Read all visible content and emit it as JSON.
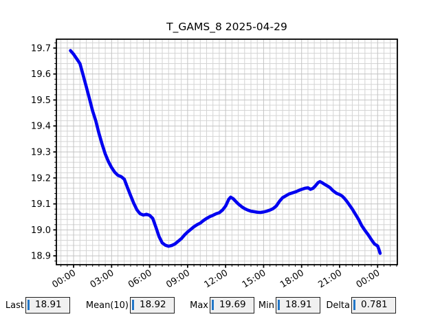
{
  "chart_data": {
    "type": "line",
    "title": "T_GAMS_8 2025-04-29",
    "xlabel": "",
    "ylabel": "",
    "x_unit": "hours_from_midnight",
    "xlim": [
      -1.36,
      25.56
    ],
    "ylim": [
      18.866,
      19.734
    ],
    "grid": "both",
    "legend": "none",
    "line_color": "#0000f0",
    "line_width": 4.6,
    "grid_major_color": "#c3c3c3",
    "grid_minor_color": "#d4d4d4",
    "axis_color": "#000000",
    "x_major_ticks": [
      {
        "pos": 0,
        "label": "00:00"
      },
      {
        "pos": 3,
        "label": "03:00"
      },
      {
        "pos": 6,
        "label": "06:00"
      },
      {
        "pos": 9,
        "label": "09:00"
      },
      {
        "pos": 12,
        "label": "12:00"
      },
      {
        "pos": 15,
        "label": "15:00"
      },
      {
        "pos": 18,
        "label": "18:00"
      },
      {
        "pos": 21,
        "label": "21:00"
      },
      {
        "pos": 24,
        "label": "00:00"
      }
    ],
    "x_minor_step": 0.5,
    "y_major_ticks": [
      {
        "pos": 18.9,
        "label": "18.9"
      },
      {
        "pos": 19.0,
        "label": "19.0"
      },
      {
        "pos": 19.1,
        "label": "19.1"
      },
      {
        "pos": 19.2,
        "label": "19.2"
      },
      {
        "pos": 19.3,
        "label": "19.3"
      },
      {
        "pos": 19.4,
        "label": "19.4"
      },
      {
        "pos": 19.5,
        "label": "19.5"
      },
      {
        "pos": 19.6,
        "label": "19.6"
      },
      {
        "pos": 19.7,
        "label": "19.7"
      }
    ],
    "y_minor_step": 0.02,
    "series": [
      {
        "name": "T_GAMS_8",
        "points": [
          [
            -0.25,
            19.69
          ],
          [
            0,
            19.676
          ],
          [
            0.25,
            19.658
          ],
          [
            0.5,
            19.64
          ],
          [
            0.75,
            19.596
          ],
          [
            1,
            19.551
          ],
          [
            1.25,
            19.505
          ],
          [
            1.5,
            19.458
          ],
          [
            1.75,
            19.42
          ],
          [
            2,
            19.372
          ],
          [
            2.25,
            19.33
          ],
          [
            2.5,
            19.292
          ],
          [
            2.75,
            19.263
          ],
          [
            3,
            19.24
          ],
          [
            3.25,
            19.222
          ],
          [
            3.5,
            19.21
          ],
          [
            3.75,
            19.205
          ],
          [
            4,
            19.195
          ],
          [
            4.25,
            19.163
          ],
          [
            4.5,
            19.132
          ],
          [
            4.75,
            19.102
          ],
          [
            5,
            19.077
          ],
          [
            5.25,
            19.062
          ],
          [
            5.5,
            19.057
          ],
          [
            5.75,
            19.06
          ],
          [
            6,
            19.056
          ],
          [
            6.25,
            19.044
          ],
          [
            6.5,
            19.01
          ],
          [
            6.75,
            18.974
          ],
          [
            7,
            18.95
          ],
          [
            7.25,
            18.941
          ],
          [
            7.5,
            18.937
          ],
          [
            7.75,
            18.94
          ],
          [
            8,
            18.946
          ],
          [
            8.25,
            18.956
          ],
          [
            8.5,
            18.966
          ],
          [
            8.75,
            18.98
          ],
          [
            9,
            18.992
          ],
          [
            9.25,
            19.002
          ],
          [
            9.5,
            19.012
          ],
          [
            9.75,
            19.02
          ],
          [
            10,
            19.026
          ],
          [
            10.25,
            19.036
          ],
          [
            10.5,
            19.044
          ],
          [
            10.75,
            19.051
          ],
          [
            11,
            19.056
          ],
          [
            11.25,
            19.062
          ],
          [
            11.5,
            19.066
          ],
          [
            11.75,
            19.076
          ],
          [
            12,
            19.092
          ],
          [
            12.25,
            19.118
          ],
          [
            12.4,
            19.126
          ],
          [
            12.6,
            19.12
          ],
          [
            12.75,
            19.112
          ],
          [
            13,
            19.1
          ],
          [
            13.25,
            19.09
          ],
          [
            13.5,
            19.082
          ],
          [
            13.75,
            19.076
          ],
          [
            14,
            19.072
          ],
          [
            14.25,
            19.07
          ],
          [
            14.5,
            19.068
          ],
          [
            14.75,
            19.067
          ],
          [
            15,
            19.069
          ],
          [
            15.25,
            19.072
          ],
          [
            15.5,
            19.076
          ],
          [
            15.75,
            19.082
          ],
          [
            16,
            19.092
          ],
          [
            16.25,
            19.11
          ],
          [
            16.5,
            19.124
          ],
          [
            16.75,
            19.131
          ],
          [
            17,
            19.138
          ],
          [
            17.25,
            19.142
          ],
          [
            17.5,
            19.146
          ],
          [
            17.75,
            19.151
          ],
          [
            18,
            19.156
          ],
          [
            18.25,
            19.16
          ],
          [
            18.5,
            19.162
          ],
          [
            18.7,
            19.156
          ],
          [
            18.9,
            19.16
          ],
          [
            19.1,
            19.17
          ],
          [
            19.3,
            19.182
          ],
          [
            19.45,
            19.186
          ],
          [
            19.6,
            19.182
          ],
          [
            19.8,
            19.176
          ],
          [
            20,
            19.17
          ],
          [
            20.25,
            19.162
          ],
          [
            20.5,
            19.15
          ],
          [
            20.75,
            19.141
          ],
          [
            21,
            19.136
          ],
          [
            21.2,
            19.13
          ],
          [
            21.4,
            19.12
          ],
          [
            21.6,
            19.108
          ],
          [
            21.8,
            19.094
          ],
          [
            22,
            19.08
          ],
          [
            22.25,
            19.06
          ],
          [
            22.5,
            19.04
          ],
          [
            22.75,
            19.016
          ],
          [
            23,
            18.998
          ],
          [
            23.25,
            18.982
          ],
          [
            23.5,
            18.963
          ],
          [
            23.75,
            18.946
          ],
          [
            24,
            18.938
          ],
          [
            24.1,
            18.925
          ],
          [
            24.2,
            18.91
          ]
        ]
      }
    ]
  },
  "stats": [
    {
      "label": "Last",
      "value": "18.91"
    },
    {
      "label": "Mean(10)",
      "value": "18.92"
    },
    {
      "label": "Max",
      "value": "19.69"
    },
    {
      "label": "Min",
      "value": "18.91"
    },
    {
      "label": "Delta",
      "value": "0.781"
    }
  ],
  "colors": {
    "background": "#ffffff",
    "stat_box_bg": "#f0f0f0",
    "stat_box_border": "#1f1f1f",
    "stat_cursor": "#2176c7"
  }
}
